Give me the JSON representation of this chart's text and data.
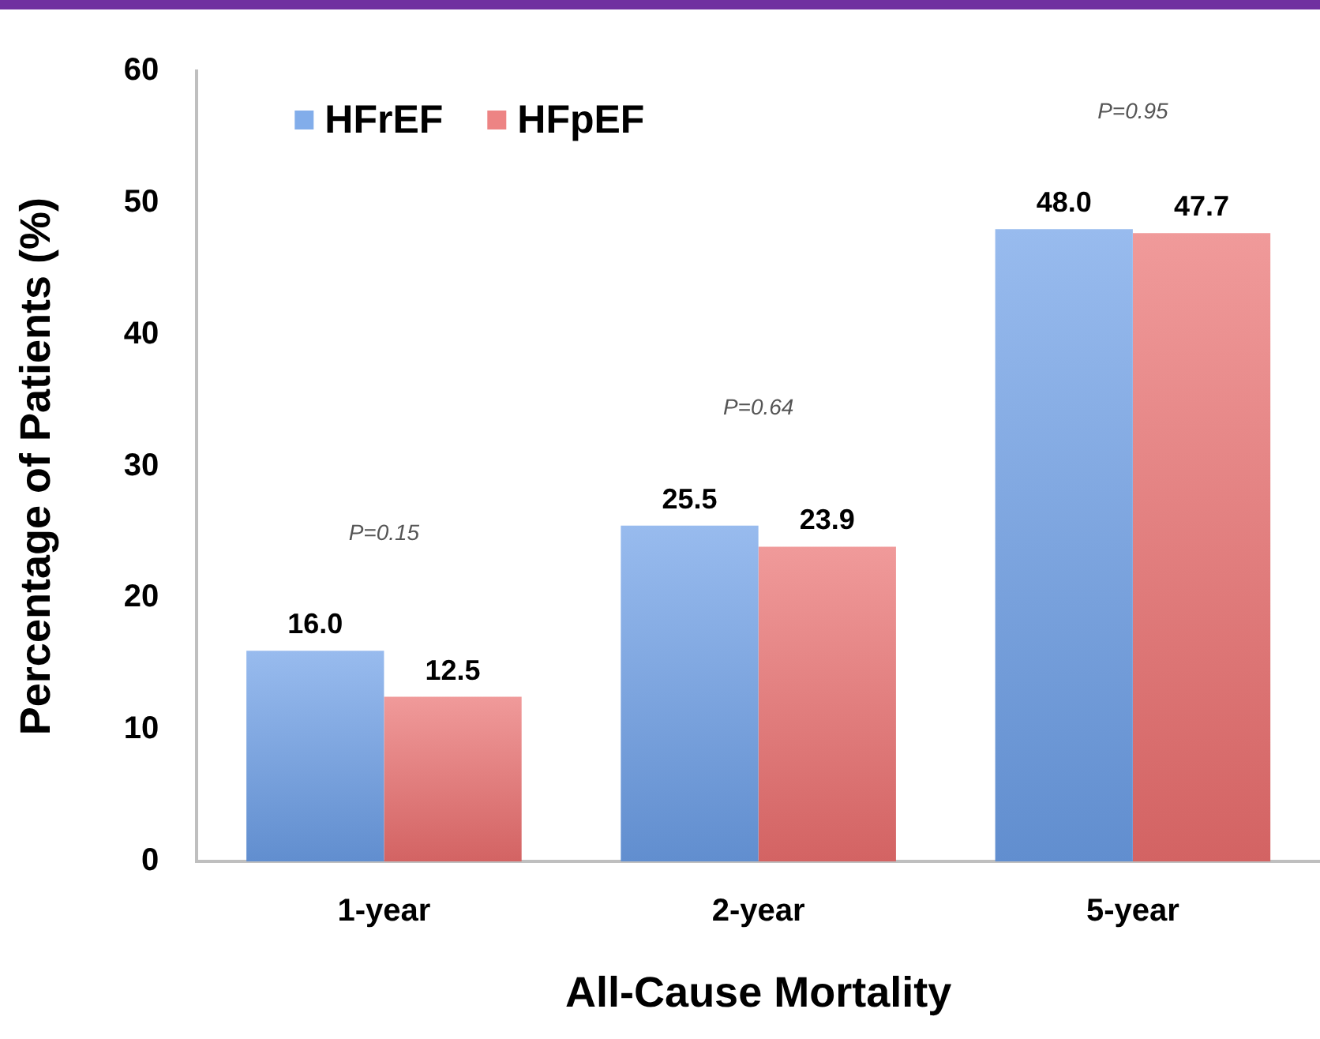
{
  "chart_data": {
    "type": "bar",
    "categories": [
      "1-year",
      "2-year",
      "5-year"
    ],
    "xlabel": "All-Cause Mortality",
    "ylabel": "Percentage of Patients (%)",
    "series": [
      {
        "name": "HFrEF",
        "color": "#6c9ee6",
        "values": [
          16.0,
          25.5,
          48.0
        ],
        "value_labels": [
          "16.0",
          "25.5",
          "48.0"
        ]
      },
      {
        "name": "HFpEF",
        "color": "#ea6e6e",
        "values": [
          12.5,
          23.9,
          47.7
        ],
        "value_labels": [
          "12.5",
          "23.9",
          "47.7"
        ]
      }
    ],
    "ylim": [
      0,
      60
    ],
    "yticks": [
      0,
      10,
      20,
      30,
      40,
      50,
      60
    ],
    "grid": false,
    "legend": "top left",
    "annotations": [
      "P=0.15",
      "P=0.64",
      "P=0.95"
    ]
  }
}
